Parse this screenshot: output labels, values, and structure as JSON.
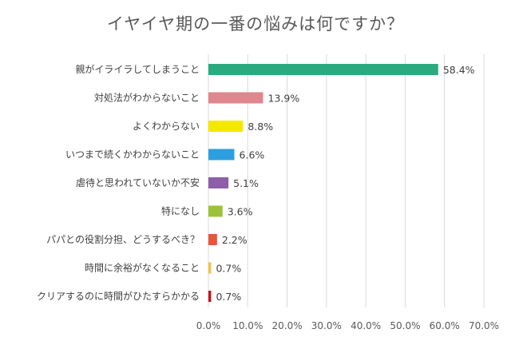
{
  "chart_data": {
    "type": "bar",
    "orientation": "horizontal",
    "title": "イヤイヤ期の一番の悩みは何ですか？",
    "categories": [
      "親がイライラしてしまうこと",
      "対処法がわからないこと",
      "よくわからない",
      "いつまで続くかわからないこと",
      "虐待と思われていないか不安",
      "特になし",
      "パパとの役割分担、どうするべき？",
      "時間に余裕がなくなること",
      "クリアするのに時間がひたすらかかる"
    ],
    "values": [
      58.4,
      13.9,
      8.8,
      6.6,
      5.1,
      3.6,
      2.2,
      0.7,
      0.7
    ],
    "value_labels": [
      "58.4%",
      "13.9%",
      "8.8%",
      "6.6%",
      "5.1%",
      "3.6%",
      "2.2%",
      "0.7%",
      "0.7%"
    ],
    "colors": [
      "#2aaa7f",
      "#e0868e",
      "#f5e800",
      "#2e9fde",
      "#8e5ea8",
      "#9cc23a",
      "#e8553a",
      "#f2c04a",
      "#c0141c"
    ],
    "xlim": [
      0,
      70
    ],
    "xticks": [
      0,
      10,
      20,
      30,
      40,
      50,
      60,
      70
    ],
    "xtick_labels": [
      "0.0%",
      "10.0%",
      "20.0%",
      "30.0%",
      "40.0%",
      "50.0%",
      "60.0%",
      "70.0%"
    ],
    "grid": true,
    "gridline_color": "#d9d9d9"
  }
}
